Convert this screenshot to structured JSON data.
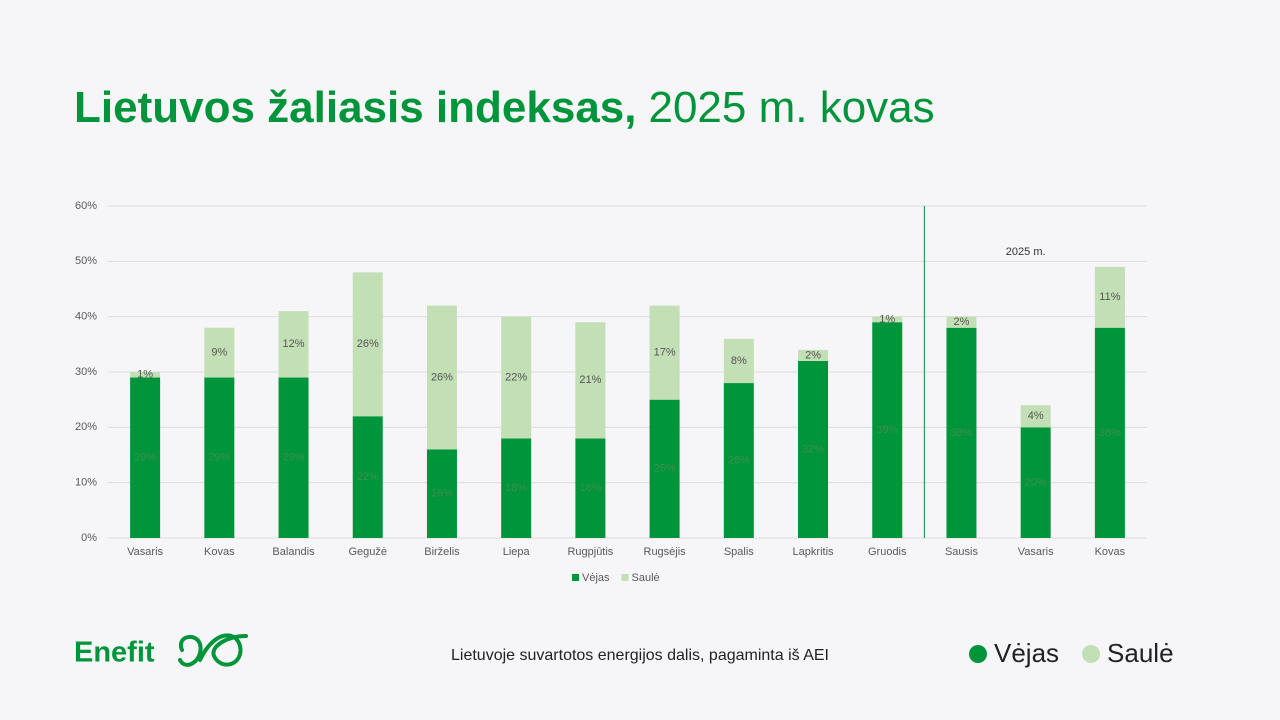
{
  "slide": {
    "title": "Lietuvos žaliasis indeksas,",
    "title_date": "2025 m. kovas",
    "logo": "Enefit",
    "footer": "Lietuvoje suvartotos energijos dalis, pagaminta iš AEI"
  },
  "chart_data": {
    "type": "stacked_bar",
    "categories": [
      "Vasaris",
      "Kovas",
      "Balandis",
      "Gegužė",
      "Birželis",
      "Liepa",
      "Rugpjūtis",
      "Rugsėjis",
      "Spalis",
      "Lapkritis",
      "Gruodis",
      "Sausis",
      "Vasaris",
      "Kovas"
    ],
    "series": [
      {
        "name": "Vėjas",
        "color": "#00953a",
        "values": [
          29,
          29,
          29,
          22,
          16,
          18,
          18,
          25,
          28,
          32,
          39,
          38,
          20,
          38
        ],
        "value_labels": [
          "29%",
          "29%",
          "29%",
          "22%",
          "16%",
          "18%",
          "18%",
          "25%",
          "28%",
          "32%",
          "39%",
          "38%",
          "20%",
          "38%"
        ]
      },
      {
        "name": "Saulė",
        "color": "#c3dfb5",
        "values": [
          1,
          9,
          12,
          26,
          26,
          22,
          21,
          17,
          8,
          2,
          1,
          2,
          4,
          11
        ],
        "value_labels": [
          "1%",
          "9%",
          "12%",
          "26%",
          "26%",
          "22%",
          "21%",
          "17%",
          "8%",
          "2%",
          "1%",
          "2%",
          "4%",
          "11%"
        ]
      }
    ],
    "ylim": [
      0,
      60
    ],
    "yticks": [
      {
        "value": 0,
        "label": "0%"
      },
      {
        "value": 10,
        "label": "10%"
      },
      {
        "value": 20,
        "label": "20%"
      },
      {
        "value": 30,
        "label": "30%"
      },
      {
        "value": 40,
        "label": "40%"
      },
      {
        "value": 50,
        "label": "50%"
      },
      {
        "value": 60,
        "label": "60%"
      }
    ],
    "grid": true,
    "legend": "bottom",
    "annotations": [
      {
        "text": "2025 m.",
        "from_category": 11
      }
    ]
  }
}
